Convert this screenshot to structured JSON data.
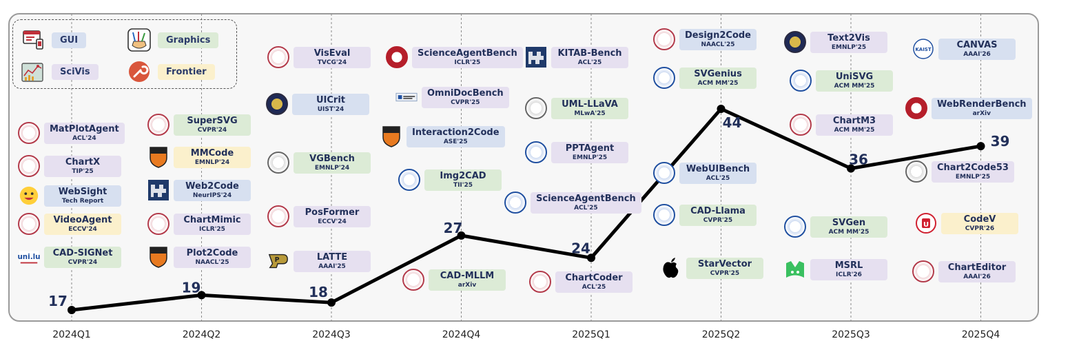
{
  "legend": {
    "items": [
      {
        "label": "GUI",
        "icon": "gui-window-icon",
        "color": "#d7e0f0"
      },
      {
        "label": "SciVis",
        "icon": "scivis-chart-icon",
        "color": "#e6e0f0"
      },
      {
        "label": "Graphics",
        "icon": "paint-brushes-icon",
        "color": "#dcebd6"
      },
      {
        "label": "Frontier",
        "icon": "wrench-icon",
        "color": "#fbf0cc"
      }
    ]
  },
  "chart_data": {
    "type": "line",
    "categories": [
      "2024Q1",
      "2024Q2",
      "2024Q3",
      "2024Q4",
      "2025Q1",
      "2025Q2",
      "2025Q3",
      "2025Q4"
    ],
    "values": [
      17,
      19,
      18,
      27,
      24,
      44,
      36,
      39
    ],
    "value_labels": [
      "17",
      "19",
      "18",
      "27",
      "24",
      "44",
      "36",
      "39"
    ],
    "ylim": [
      14,
      48
    ],
    "grid": "vertical dashed",
    "title": "",
    "xlabel": "",
    "ylabel": ""
  },
  "cards": [
    {
      "name": "MatPlotAgent",
      "venue": "ACL'24",
      "cat": "sci",
      "logo": "seal"
    },
    {
      "name": "ChartX",
      "venue": "TIP'25",
      "cat": "sci",
      "logo": "seal"
    },
    {
      "name": "WebSight",
      "venue": "Tech Report",
      "cat": "gui",
      "logo": "hf"
    },
    {
      "name": "VideoAgent",
      "venue": "ECCV'24",
      "cat": "fro",
      "logo": "seal"
    },
    {
      "name": "CAD-SIGNet",
      "venue": "CVPR'24",
      "cat": "gra",
      "logo": "unilu"
    },
    {
      "name": "SuperSVG",
      "venue": "CVPR'24",
      "cat": "gra",
      "logo": "seal"
    },
    {
      "name": "MMCode",
      "venue": "EMNLP'24",
      "cat": "fro",
      "logo": "shield"
    },
    {
      "name": "Web2Code",
      "venue": "NeurIPS'24",
      "cat": "gui",
      "logo": "flag"
    },
    {
      "name": "ChartMimic",
      "venue": "ICLR'25",
      "cat": "sci",
      "logo": "seal"
    },
    {
      "name": "Plot2Code",
      "venue": "NAACL'25",
      "cat": "sci",
      "logo": "shield"
    },
    {
      "name": "VisEval",
      "venue": "TVCG'24",
      "cat": "sci",
      "logo": "seal"
    },
    {
      "name": "UICrit",
      "venue": "UIST'24",
      "cat": "gui",
      "logo": "gold"
    },
    {
      "name": "VGBench",
      "venue": "EMNLP'24",
      "cat": "gra",
      "logo": "gray"
    },
    {
      "name": "PosFormer",
      "venue": "ECCV'24",
      "cat": "sci",
      "logo": "seal"
    },
    {
      "name": "LATTE",
      "venue": "AAAI'25",
      "cat": "sci",
      "logo": "purdue"
    },
    {
      "name": "ScienceAgentBench",
      "venue": "ICLR'25",
      "cat": "sci",
      "logo": "red"
    },
    {
      "name": "OmniDocBench",
      "venue": "CVPR'25",
      "cat": "sci",
      "logo": "text"
    },
    {
      "name": "Interaction2Code",
      "venue": "ASE'25",
      "cat": "gui",
      "logo": "shield"
    },
    {
      "name": "Img2CAD",
      "venue": "TII'25",
      "cat": "gra",
      "logo": "blue"
    },
    {
      "name": "CAD-MLLM",
      "venue": "arXiv",
      "cat": "gra",
      "logo": "seal"
    },
    {
      "name": "KITAB-Bench",
      "venue": "ACL'25",
      "cat": "sci",
      "logo": "flag"
    },
    {
      "name": "UML-LLaVA",
      "venue": "MLwA'25",
      "cat": "gra",
      "logo": "gray"
    },
    {
      "name": "PPTAgent",
      "venue": "EMNLP'25",
      "cat": "sci",
      "logo": "blue"
    },
    {
      "name": "ScienceAgentBench",
      "venue": "ACL'25",
      "cat": "sci",
      "logo": "blue"
    },
    {
      "name": "ChartCoder",
      "venue": "ACL'25",
      "cat": "sci",
      "logo": "seal"
    },
    {
      "name": "Design2Code",
      "venue": "NAACL'25",
      "cat": "gui",
      "logo": "seal"
    },
    {
      "name": "SVGenius",
      "venue": "ACM MM'25",
      "cat": "gra",
      "logo": "blue"
    },
    {
      "name": "WebUIBench",
      "venue": "ACL'25",
      "cat": "gui",
      "logo": "blue"
    },
    {
      "name": "CAD-Llama",
      "venue": "CVPR'25",
      "cat": "gra",
      "logo": "blue"
    },
    {
      "name": "StarVector",
      "venue": "CVPR'25",
      "cat": "gra",
      "logo": "apple"
    },
    {
      "name": "Text2Vis",
      "venue": "EMNLP'25",
      "cat": "sci",
      "logo": "gold"
    },
    {
      "name": "UniSVG",
      "venue": "ACM MM'25",
      "cat": "gra",
      "logo": "blue"
    },
    {
      "name": "ChartM3",
      "venue": "ACM MM'25",
      "cat": "sci",
      "logo": "seal"
    },
    {
      "name": "SVGen",
      "venue": "ACM MM'25",
      "cat": "gra",
      "logo": "blue"
    },
    {
      "name": "MSRL",
      "venue": "ICLR'26",
      "cat": "sci",
      "logo": "m"
    },
    {
      "name": "CANVAS",
      "venue": "AAAI'26",
      "cat": "gui",
      "logo": "kaist"
    },
    {
      "name": "WebRenderBench",
      "venue": "arXiv",
      "cat": "gui",
      "logo": "red"
    },
    {
      "name": "Chart2Code53",
      "venue": "EMNLP'25",
      "cat": "sci",
      "logo": "gray"
    },
    {
      "name": "CodeV",
      "venue": "CVPR'26",
      "cat": "fro",
      "logo": "york"
    },
    {
      "name": "ChartEditor",
      "venue": "AAAI'26",
      "cat": "sci",
      "logo": "seal"
    }
  ]
}
